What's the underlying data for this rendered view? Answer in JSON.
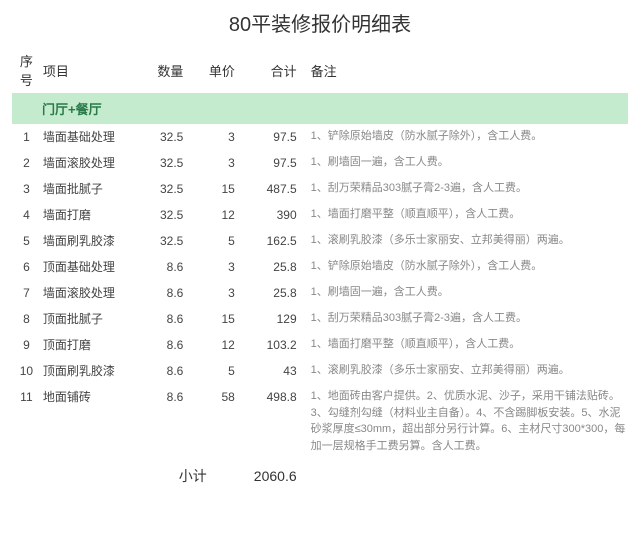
{
  "title": "80平装修报价明细表",
  "headers": {
    "seq": "序号",
    "item": "项目",
    "qty": "数量",
    "price": "单价",
    "total": "合计",
    "note": "备注"
  },
  "section": "门厅+餐厅",
  "rows": [
    {
      "seq": "1",
      "item": "墙面基础处理",
      "qty": "32.5",
      "price": "3",
      "total": "97.5",
      "note": "1、铲除原始墙皮（防水腻子除外），含工人费。"
    },
    {
      "seq": "2",
      "item": "墙面滚胶处理",
      "qty": "32.5",
      "price": "3",
      "total": "97.5",
      "note": "1、刷墙固一遍，含工人费。"
    },
    {
      "seq": "3",
      "item": "墙面批腻子",
      "qty": "32.5",
      "price": "15",
      "total": "487.5",
      "note": "1、刮万荣精品303腻子膏2-3遍，含人工费。"
    },
    {
      "seq": "4",
      "item": "墙面打磨",
      "qty": "32.5",
      "price": "12",
      "total": "390",
      "note": "1、墙面打磨平整（顺直顺平），含人工费。"
    },
    {
      "seq": "5",
      "item": "墙面刷乳胶漆",
      "qty": "32.5",
      "price": "5",
      "total": "162.5",
      "note": "1、滚刷乳胶漆（多乐士家丽安、立邦美得丽）两遍。"
    },
    {
      "seq": "6",
      "item": "顶面基础处理",
      "qty": "8.6",
      "price": "3",
      "total": "25.8",
      "note": "1、铲除原始墙皮（防水腻子除外），含工人费。"
    },
    {
      "seq": "7",
      "item": "墙面滚胶处理",
      "qty": "8.6",
      "price": "3",
      "total": "25.8",
      "note": "1、刷墙固一遍，含工人费。"
    },
    {
      "seq": "8",
      "item": "顶面批腻子",
      "qty": "8.6",
      "price": "15",
      "total": "129",
      "note": "1、刮万荣精品303腻子膏2-3遍，含人工费。"
    },
    {
      "seq": "9",
      "item": "顶面打磨",
      "qty": "8.6",
      "price": "12",
      "total": "103.2",
      "note": "1、墙面打磨平整（顺直顺平），含人工费。"
    },
    {
      "seq": "10",
      "item": "顶面刷乳胶漆",
      "qty": "8.6",
      "price": "5",
      "total": "43",
      "note": "1、滚刷乳胶漆（多乐士家丽安、立邦美得丽）两遍。"
    },
    {
      "seq": "11",
      "item": "地面铺砖",
      "qty": "8.6",
      "price": "58",
      "total": "498.8",
      "note": "1、地面砖由客户提供。2、优质水泥、沙子，采用干铺法贴砖。3、勾缝剂勾缝（材料业主自备）。4、不含踢脚板安装。5、水泥砂浆厚度≤30mm，超出部分另行计算。6、主材尺寸300*300，每加一层规格手工费另算。含人工费。"
    }
  ],
  "subtotal": {
    "label": "小计",
    "value": "2060.6"
  },
  "colors": {
    "section_bg": "#c5ebcf",
    "section_text": "#2a7a4a",
    "note_text": "#888888",
    "body_text": "#444444"
  }
}
